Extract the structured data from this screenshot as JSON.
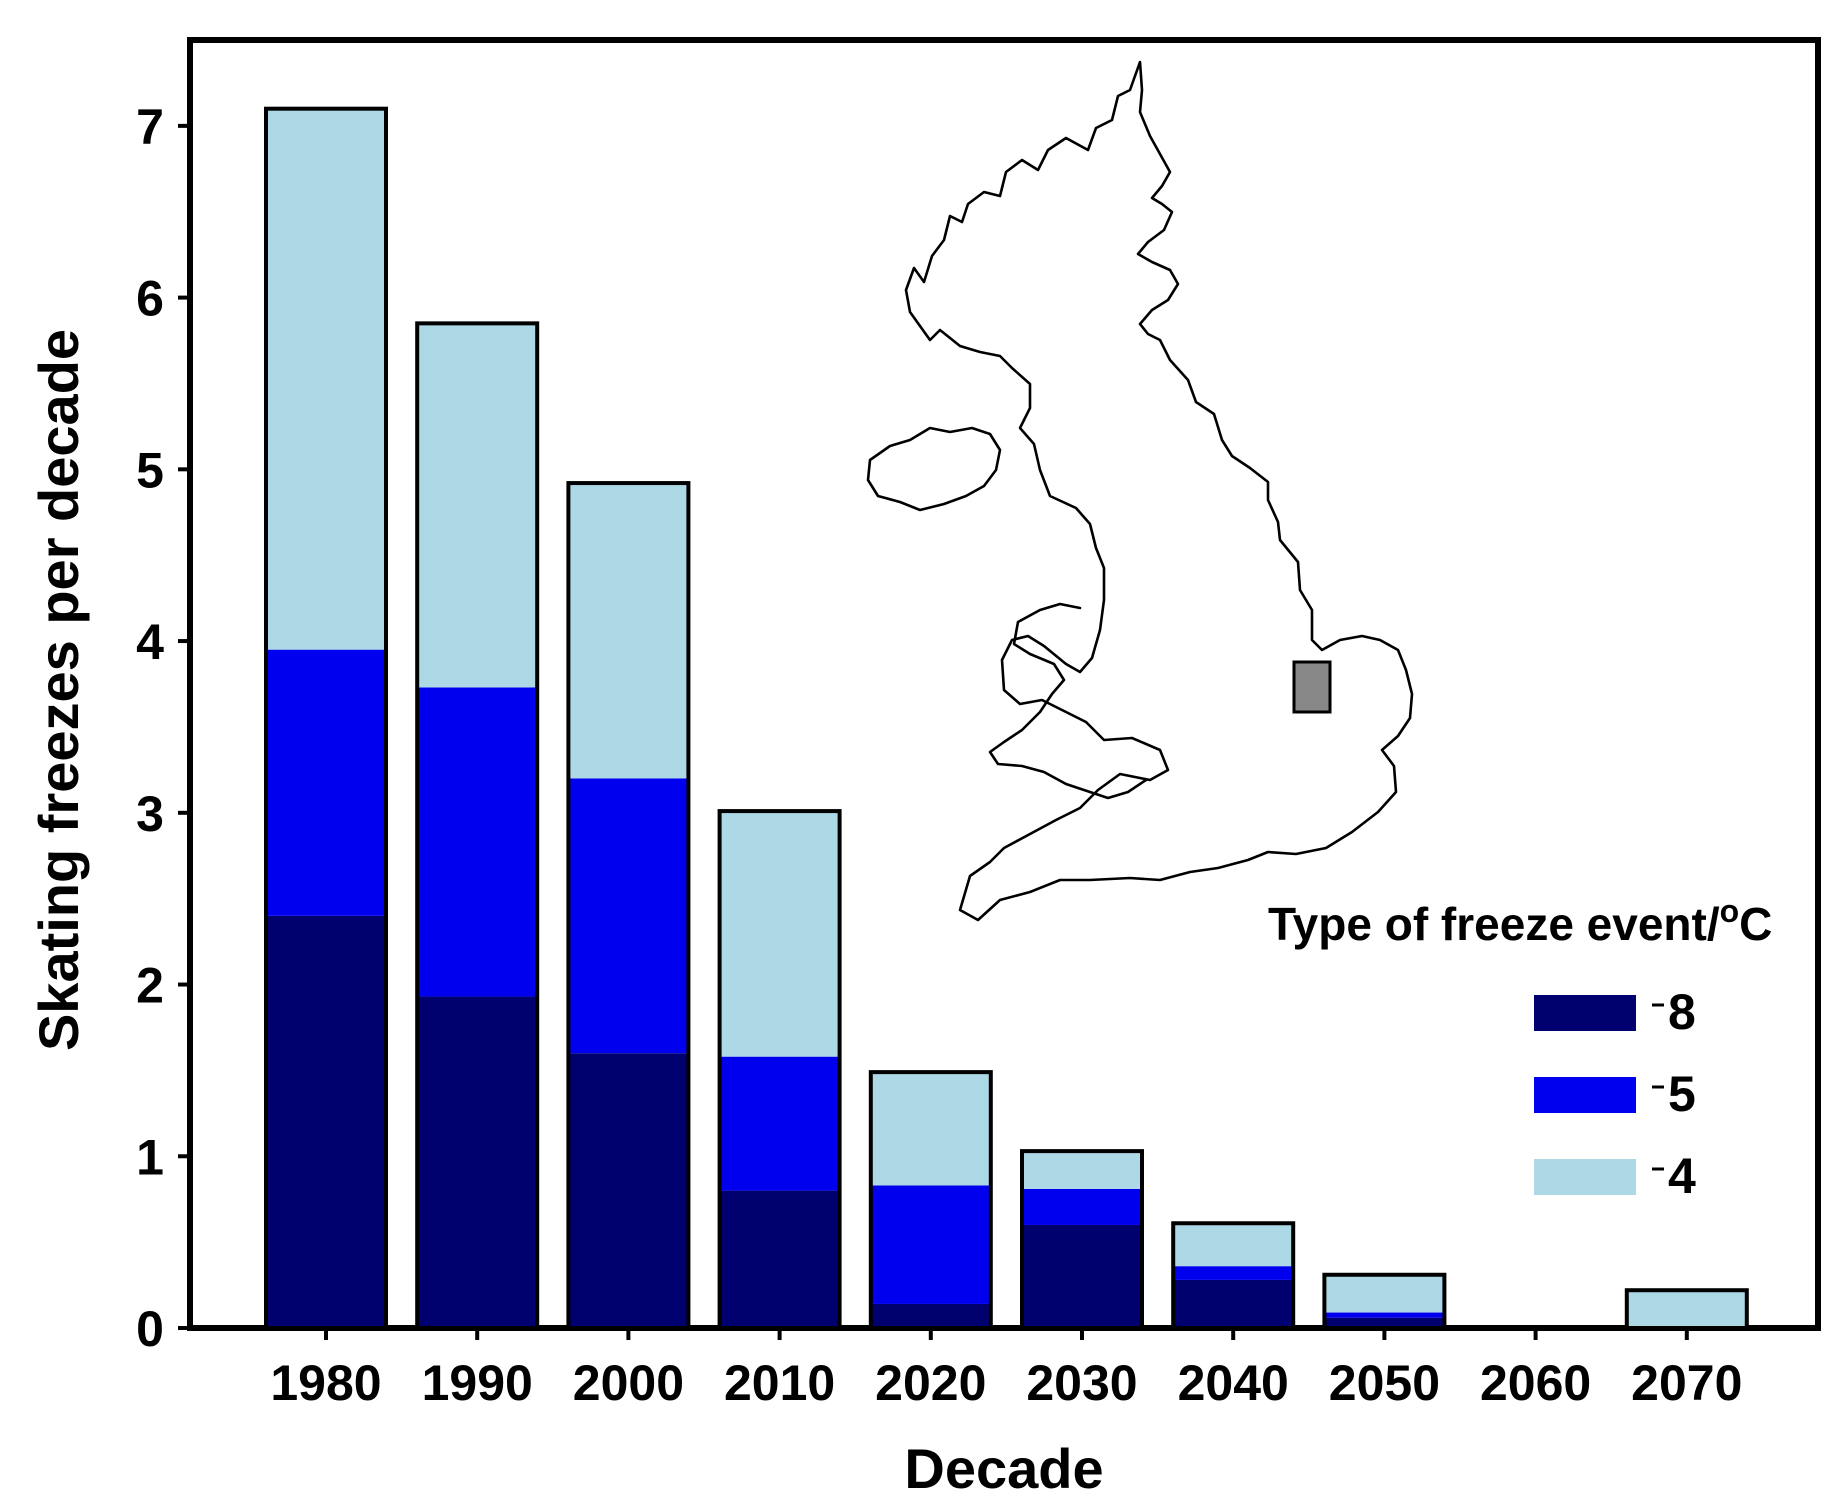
{
  "chart_data": {
    "type": "bar",
    "stacked": true,
    "categories": [
      "1980",
      "1990",
      "2000",
      "2010",
      "2020",
      "2030",
      "2040",
      "2050",
      "2060",
      "2070"
    ],
    "series": [
      {
        "name": "8",
        "color": "#00006e",
        "values": [
          2.4,
          1.93,
          1.6,
          0.8,
          0.14,
          0.6,
          0.28,
          0.06,
          0.0,
          0.0
        ]
      },
      {
        "name": "5",
        "color": "#0000ee",
        "values": [
          1.55,
          1.8,
          1.6,
          0.78,
          0.69,
          0.21,
          0.08,
          0.03,
          0.0,
          0.0
        ]
      },
      {
        "name": "4",
        "color": "#add8e6",
        "values": [
          3.15,
          2.12,
          1.72,
          1.43,
          0.66,
          0.22,
          0.25,
          0.22,
          0.0,
          0.22
        ]
      }
    ],
    "xlabel": "Decade",
    "ylabel": "Skating freezes per decade",
    "ylim": [
      0,
      7.5
    ],
    "yticks": [
      "0",
      "1",
      "2",
      "3",
      "4",
      "5",
      "6",
      "7"
    ],
    "grid": false,
    "legend": {
      "title_main": "Type of freeze event/",
      "title_sup": "o",
      "title_unit": "C",
      "placement": "bottom-right",
      "entries": [
        "8",
        "5",
        "4"
      ]
    },
    "inset": "uk-map-outline"
  }
}
